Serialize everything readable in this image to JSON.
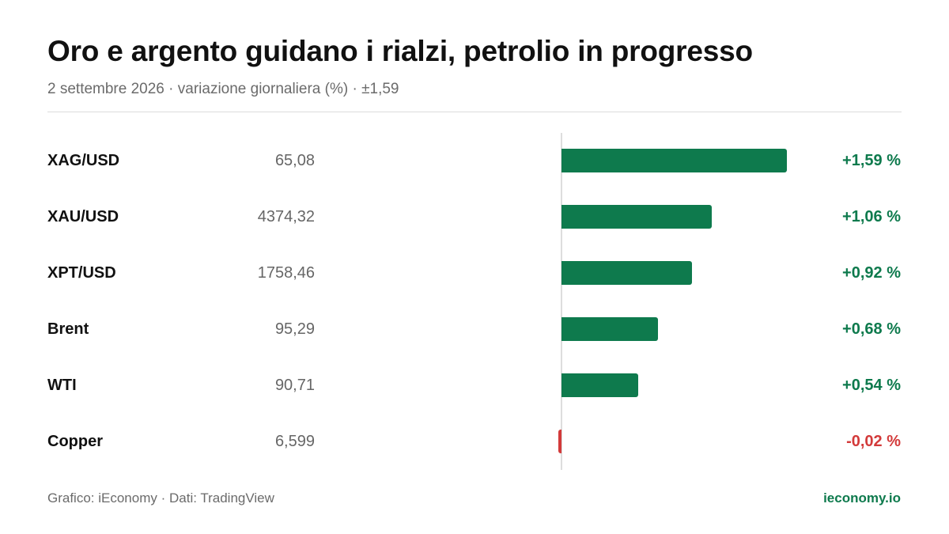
{
  "header": {
    "title": "Oro e argento guidano i rialzi, petrolio in progresso",
    "subtitle": "2 settembre 2026 · variazione giornaliera (%) · ±1,59"
  },
  "chart_data": {
    "type": "bar",
    "orientation": "horizontal",
    "title": "Oro e argento guidano i rialzi, petrolio in progresso",
    "subtitle": "2 settembre 2026 · variazione giornaliera (%) · ±1,59",
    "categories": [
      "XAG/USD",
      "XAU/USD",
      "XPT/USD",
      "Brent",
      "WTI",
      "Copper"
    ],
    "prices": [
      "65,08",
      "4374,32",
      "1758,46",
      "95,29",
      "90,71",
      "6,599"
    ],
    "values": [
      1.59,
      1.06,
      0.92,
      0.68,
      0.54,
      -0.02
    ],
    "value_labels": [
      "+1,59 %",
      "+1,06 %",
      "+0,92 %",
      "+0,68 %",
      "+0,54 %",
      "-0,02 %"
    ],
    "xlim": [
      -1.59,
      1.59
    ],
    "xlabel": "",
    "ylabel": "",
    "grid": false,
    "legend": "none",
    "colors": {
      "positive": "#0e7a4d",
      "negative": "#d33a3a",
      "zero_line": "#dddddd"
    }
  },
  "footer": {
    "source": "Grafico: iEconomy · Dati: TradingView",
    "site": "ieconomy.io"
  }
}
